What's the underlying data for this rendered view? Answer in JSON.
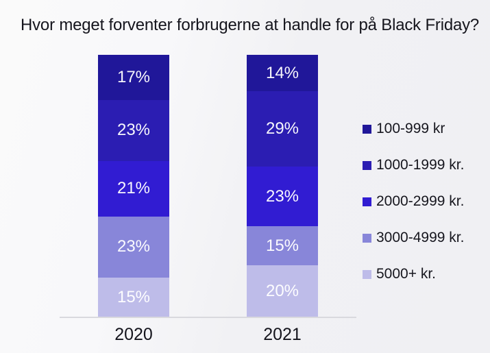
{
  "page": {
    "background": "#f1f1f4"
  },
  "chart_data": {
    "type": "bar",
    "variant": "stacked-percent-column",
    "title": "Hvor meget forventer forbrugerne at handle for på Black Friday?",
    "categories": [
      "2020",
      "2021"
    ],
    "series": [
      {
        "name": "100-999 kr",
        "color": "#201799",
        "values": [
          17,
          14
        ]
      },
      {
        "name": "1000-1999 kr.",
        "color": "#2b1db2",
        "values": [
          23,
          29
        ]
      },
      {
        "name": "2000-2999 kr.",
        "color": "#311cd2",
        "values": [
          21,
          23
        ]
      },
      {
        "name": "3000-4999 kr.",
        "color": "#8886d9",
        "values": [
          23,
          15
        ]
      },
      {
        "name": "5000+ kr.",
        "color": "#bebce9",
        "values": [
          15,
          20
        ]
      }
    ],
    "value_suffix": "%",
    "data_labels": true,
    "legend_position": "right",
    "grid": false,
    "axis_line_color": "#d9d9de",
    "data_label_color": "#ffffff",
    "text_color": "#15151d"
  }
}
